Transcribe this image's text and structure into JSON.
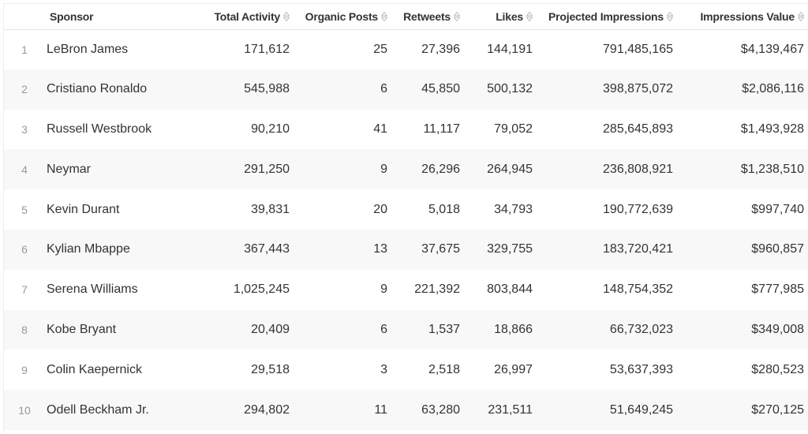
{
  "columns": [
    {
      "key": "index",
      "label": ""
    },
    {
      "key": "sponsor",
      "label": "Sponsor"
    },
    {
      "key": "total_activity",
      "label": "Total Activity"
    },
    {
      "key": "organic_posts",
      "label": "Organic Posts"
    },
    {
      "key": "retweets",
      "label": "Retweets"
    },
    {
      "key": "likes",
      "label": "Likes"
    },
    {
      "key": "projected_impressions",
      "label": "Projected Impressions"
    },
    {
      "key": "impressions_value",
      "label": "Impressions Value"
    }
  ],
  "rows": [
    {
      "index": "1",
      "sponsor": "LeBron James",
      "total_activity": "171,612",
      "organic_posts": "25",
      "retweets": "27,396",
      "likes": "144,191",
      "projected_impressions": "791,485,165",
      "impressions_value": "$4,139,467"
    },
    {
      "index": "2",
      "sponsor": "Cristiano Ronaldo",
      "total_activity": "545,988",
      "organic_posts": "6",
      "retweets": "45,850",
      "likes": "500,132",
      "projected_impressions": "398,875,072",
      "impressions_value": "$2,086,116"
    },
    {
      "index": "3",
      "sponsor": "Russell Westbrook",
      "total_activity": "90,210",
      "organic_posts": "41",
      "retweets": "11,117",
      "likes": "79,052",
      "projected_impressions": "285,645,893",
      "impressions_value": "$1,493,928"
    },
    {
      "index": "4",
      "sponsor": "Neymar",
      "total_activity": "291,250",
      "organic_posts": "9",
      "retweets": "26,296",
      "likes": "264,945",
      "projected_impressions": "236,808,921",
      "impressions_value": "$1,238,510"
    },
    {
      "index": "5",
      "sponsor": "Kevin Durant",
      "total_activity": "39,831",
      "organic_posts": "20",
      "retweets": "5,018",
      "likes": "34,793",
      "projected_impressions": "190,772,639",
      "impressions_value": "$997,740"
    },
    {
      "index": "6",
      "sponsor": "Kylian Mbappe",
      "total_activity": "367,443",
      "organic_posts": "13",
      "retweets": "37,675",
      "likes": "329,755",
      "projected_impressions": "183,720,421",
      "impressions_value": "$960,857"
    },
    {
      "index": "7",
      "sponsor": "Serena Williams",
      "total_activity": "1,025,245",
      "organic_posts": "9",
      "retweets": "221,392",
      "likes": "803,844",
      "projected_impressions": "148,754,352",
      "impressions_value": "$777,985"
    },
    {
      "index": "8",
      "sponsor": "Kobe Bryant",
      "total_activity": "20,409",
      "organic_posts": "6",
      "retweets": "1,537",
      "likes": "18,866",
      "projected_impressions": "66,732,023",
      "impressions_value": "$349,008"
    },
    {
      "index": "9",
      "sponsor": "Colin Kaepernick",
      "total_activity": "29,518",
      "organic_posts": "3",
      "retweets": "2,518",
      "likes": "26,997",
      "projected_impressions": "53,637,393",
      "impressions_value": "$280,523"
    },
    {
      "index": "10",
      "sponsor": "Odell Beckham Jr.",
      "total_activity": "294,802",
      "organic_posts": "11",
      "retweets": "63,280",
      "likes": "231,511",
      "projected_impressions": "51,649,245",
      "impressions_value": "$270,125"
    }
  ],
  "icons": {
    "sort": "sort-updown-icon"
  },
  "colors": {
    "header_text": "#333333",
    "row_text": "#333333",
    "index_text": "#999999",
    "stripe": "#f8f8f8",
    "sort_icon": "#b8b8b8"
  }
}
